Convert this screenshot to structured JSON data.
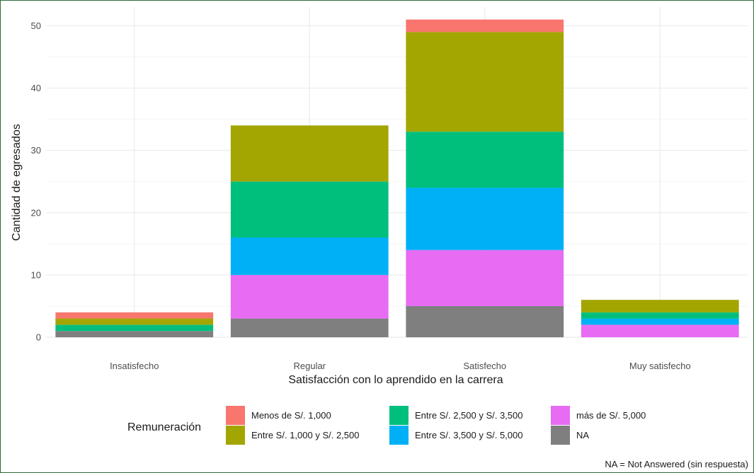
{
  "chart_data": {
    "type": "bar",
    "stacked": true,
    "xlabel": "Satisfacción con lo aprendido en la carrera",
    "ylabel": "Cantidad de egresados",
    "categories": [
      "Insatisfecho",
      "Regular",
      "Satisfecho",
      "Muy satisfecho"
    ],
    "ylim": [
      0,
      53
    ],
    "yticks": [
      0,
      10,
      20,
      30,
      40,
      50
    ],
    "grid": true,
    "legend_title": "Remuneración",
    "legend_position": "bottom",
    "caption": "NA = Not Answered (sin respuesta)",
    "series": [
      {
        "name": "NA",
        "color": "#7f7f7f",
        "values": [
          1,
          3,
          5,
          0
        ]
      },
      {
        "name": "más de S/. 5,000",
        "color": "#e76bf3",
        "values": [
          0,
          7,
          9,
          2
        ]
      },
      {
        "name": "Entre S/. 3,500 y S/. 5,000",
        "color": "#00b0f6",
        "values": [
          0,
          6,
          10,
          1
        ]
      },
      {
        "name": "Entre S/. 2,500 y S/. 3,500",
        "color": "#00bf7d",
        "values": [
          1,
          9,
          9,
          1
        ]
      },
      {
        "name": "Entre S/. 1,000 y S/. 2,500",
        "color": "#a3a500",
        "values": [
          1,
          9,
          16,
          2
        ]
      },
      {
        "name": "Menos de S/. 1,000",
        "color": "#f8766d",
        "values": [
          1,
          0,
          2,
          0
        ]
      }
    ],
    "legend_order": [
      "Menos de S/. 1,000",
      "Entre S/. 1,000 y S/. 2,500",
      "Entre S/. 2,500 y S/. 3,500",
      "Entre S/. 3,500 y S/. 5,000",
      "más de S/. 5,000",
      "NA"
    ]
  }
}
